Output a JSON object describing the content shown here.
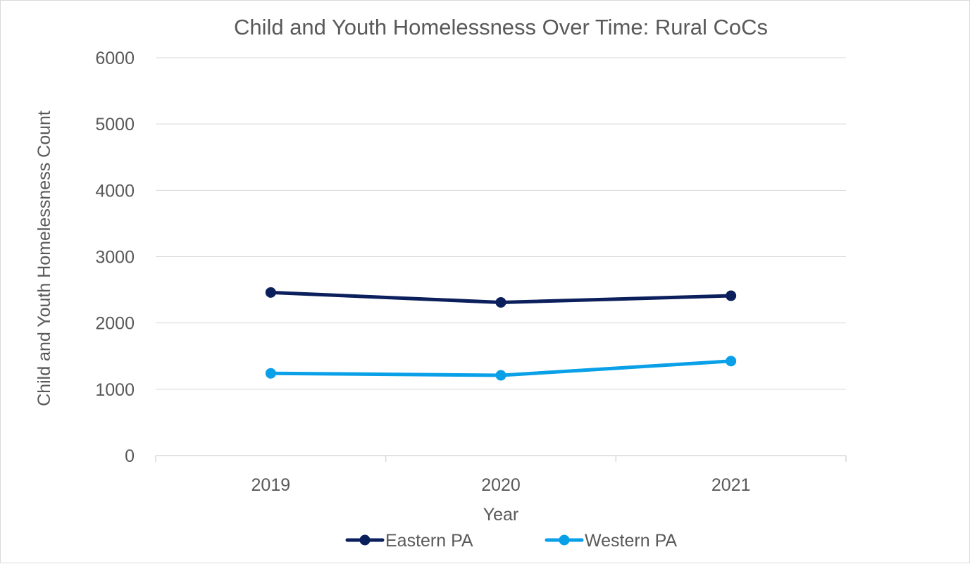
{
  "chart_data": {
    "type": "line",
    "title": "Child and Youth Homelessness Over Time: Rural CoCs",
    "xlabel": "Year",
    "ylabel": "Child and Youth Homelessness Count",
    "categories": [
      "2019",
      "2020",
      "2021"
    ],
    "ylim": [
      0,
      6000
    ],
    "yticks": [
      "0",
      "1000",
      "2000",
      "3000",
      "4000",
      "5000",
      "6000"
    ],
    "grid": true,
    "legend_position": "bottom",
    "series": [
      {
        "name": "Eastern PA",
        "color": "#0b1f5c",
        "values": [
          2460,
          2310,
          2410
        ]
      },
      {
        "name": "Western PA",
        "color": "#0aa0e8",
        "values": [
          1240,
          1210,
          1425
        ]
      }
    ]
  }
}
